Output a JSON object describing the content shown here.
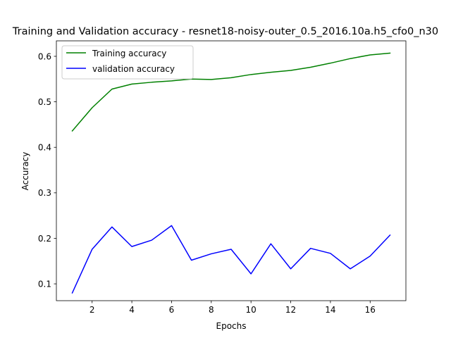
{
  "chart_data": {
    "type": "line",
    "title": "Training and Validation accuracy - resnet18-noisy-outer_0.5_2016.10a.h5_cfo0_n30",
    "xlabel": "Epochs",
    "ylabel": "Accuracy",
    "xlim": [
      0.2,
      17.8
    ],
    "ylim": [
      0.063,
      0.634
    ],
    "x_ticks": [
      2,
      4,
      6,
      8,
      10,
      12,
      14,
      16
    ],
    "y_ticks": [
      0.1,
      0.2,
      0.3,
      0.4,
      0.5,
      0.6
    ],
    "grid": false,
    "legend_position": "top-left",
    "x": [
      1,
      2,
      3,
      4,
      5,
      6,
      7,
      8,
      9,
      10,
      11,
      12,
      13,
      14,
      15,
      16,
      17
    ],
    "series": [
      {
        "name": "Training accuracy",
        "color": "#008000",
        "values": [
          0.436,
          0.487,
          0.528,
          0.539,
          0.543,
          0.546,
          0.55,
          0.549,
          0.553,
          0.56,
          0.565,
          0.569,
          0.576,
          0.585,
          0.595,
          0.603,
          0.607
        ]
      },
      {
        "name": "validation accuracy",
        "color": "#0000ff",
        "values": [
          0.08,
          0.176,
          0.225,
          0.182,
          0.196,
          0.228,
          0.152,
          0.166,
          0.176,
          0.122,
          0.188,
          0.133,
          0.178,
          0.167,
          0.133,
          0.161,
          0.207
        ]
      }
    ]
  }
}
